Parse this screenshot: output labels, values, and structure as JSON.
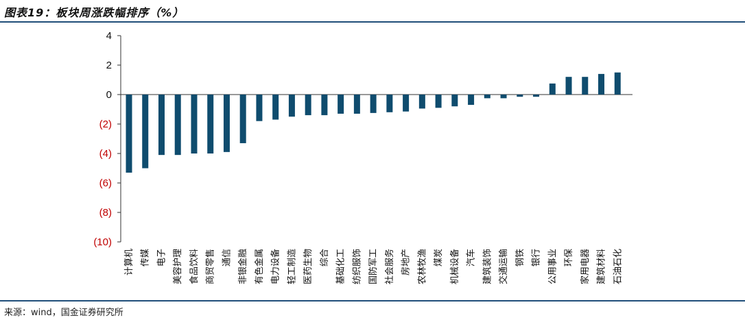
{
  "header": {
    "title": "图表19：板块周涨跌幅排序（%）"
  },
  "footer": {
    "source": "来源：wind，国金证券研究所"
  },
  "colors": {
    "bar": "#0f4c6e",
    "rule": "#1f4e79",
    "negative_label": "#c00000",
    "positive_label": "#111111"
  },
  "chart_data": {
    "type": "bar",
    "title": "图表19：板块周涨跌幅排序（%）",
    "xlabel": "",
    "ylabel": "",
    "ylim": [
      -10,
      4
    ],
    "yticks": [
      4,
      2,
      0,
      -2,
      -4,
      -6,
      -8,
      -10
    ],
    "ytick_labels": [
      "4",
      "2",
      "0",
      "(2)",
      "(4)",
      "(6)",
      "(8)",
      "(10)"
    ],
    "grid": false,
    "legend": "none",
    "categories": [
      "计算机",
      "传媒",
      "电子",
      "美容护理",
      "食品饮料",
      "商贸零售",
      "通信",
      "非银金融",
      "有色金属",
      "电力设备",
      "轻工制造",
      "医药生物",
      "综合",
      "基础化工",
      "纺织服饰",
      "国防军工",
      "社会服务",
      "房地产",
      "农林牧渔",
      "煤炭",
      "机械设备",
      "汽车",
      "建筑装饰",
      "交通运输",
      "钢铁",
      "银行",
      "公用事业",
      "环保",
      "家用电器",
      "建筑材料",
      "石油石化"
    ],
    "values": [
      -5.3,
      -5.0,
      -4.1,
      -4.1,
      -4.0,
      -4.0,
      -3.9,
      -3.3,
      -1.8,
      -1.7,
      -1.5,
      -1.4,
      -1.4,
      -1.3,
      -1.3,
      -1.25,
      -1.2,
      -1.15,
      -0.95,
      -0.9,
      -0.8,
      -0.7,
      -0.25,
      -0.25,
      -0.15,
      -0.15,
      0.75,
      1.2,
      1.2,
      1.4,
      1.5
    ]
  }
}
